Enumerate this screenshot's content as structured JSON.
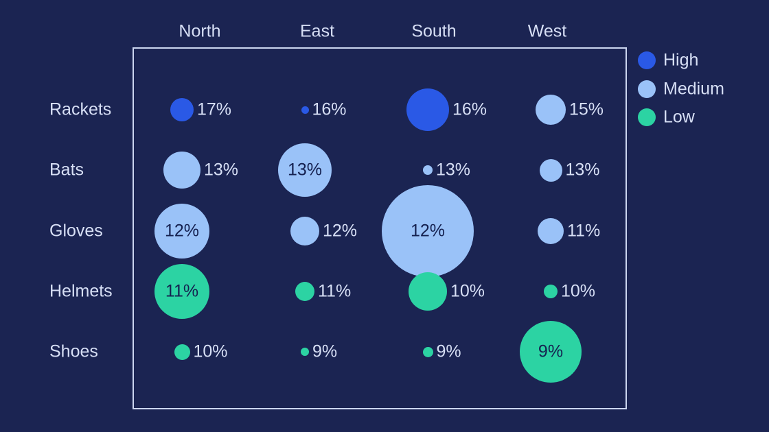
{
  "chart_data": {
    "type": "bubble-matrix",
    "columns": [
      "North",
      "East",
      "South",
      "West"
    ],
    "rows": [
      "Rackets",
      "Bats",
      "Gloves",
      "Helmets",
      "Shoes"
    ],
    "legend": [
      {
        "label": "High",
        "level": "high"
      },
      {
        "label": "Medium",
        "level": "medium"
      },
      {
        "label": "Low",
        "level": "low"
      }
    ],
    "legend_position": "top-right",
    "grid": "off",
    "cells": [
      [
        {
          "value": "17%",
          "level": "high",
          "radius": 17,
          "label_inside": false
        },
        {
          "value": "16%",
          "level": "high",
          "radius": 5.5,
          "label_inside": false
        },
        {
          "value": "16%",
          "level": "high",
          "radius": 31,
          "label_inside": false
        },
        {
          "value": "15%",
          "level": "medium",
          "radius": 22,
          "label_inside": false
        }
      ],
      [
        {
          "value": "13%",
          "level": "medium",
          "radius": 27,
          "label_inside": false
        },
        {
          "value": "13%",
          "level": "medium",
          "radius": 39,
          "label_inside": true
        },
        {
          "value": "13%",
          "level": "medium",
          "radius": 7,
          "label_inside": false
        },
        {
          "value": "13%",
          "level": "medium",
          "radius": 16.5,
          "label_inside": false
        }
      ],
      [
        {
          "value": "12%",
          "level": "medium",
          "radius": 40,
          "label_inside": true
        },
        {
          "value": "12%",
          "level": "medium",
          "radius": 21,
          "label_inside": false
        },
        {
          "value": "12%",
          "level": "medium",
          "radius": 67,
          "label_inside": true
        },
        {
          "value": "11%",
          "level": "medium",
          "radius": 19,
          "label_inside": false
        }
      ],
      [
        {
          "value": "11%",
          "level": "low",
          "radius": 40,
          "label_inside": true
        },
        {
          "value": "11%",
          "level": "low",
          "radius": 14,
          "label_inside": false
        },
        {
          "value": "10%",
          "level": "low",
          "radius": 28,
          "label_inside": false
        },
        {
          "value": "10%",
          "level": "low",
          "radius": 10,
          "label_inside": false
        }
      ],
      [
        {
          "value": "10%",
          "level": "low",
          "radius": 11.5,
          "label_inside": false
        },
        {
          "value": "9%",
          "level": "low",
          "radius": 6,
          "label_inside": false
        },
        {
          "value": "9%",
          "level": "low",
          "radius": 7.5,
          "label_inside": false
        },
        {
          "value": "9%",
          "level": "low",
          "radius": 45,
          "label_inside": true
        }
      ]
    ]
  },
  "colors": {
    "background": "#1b2452",
    "high": "#2a59e6",
    "medium": "#9ac2f8",
    "low": "#2cd3a3",
    "text_light": "#d7dff5",
    "text_dark": "#152150",
    "plot_border": "#ccd6f0"
  }
}
